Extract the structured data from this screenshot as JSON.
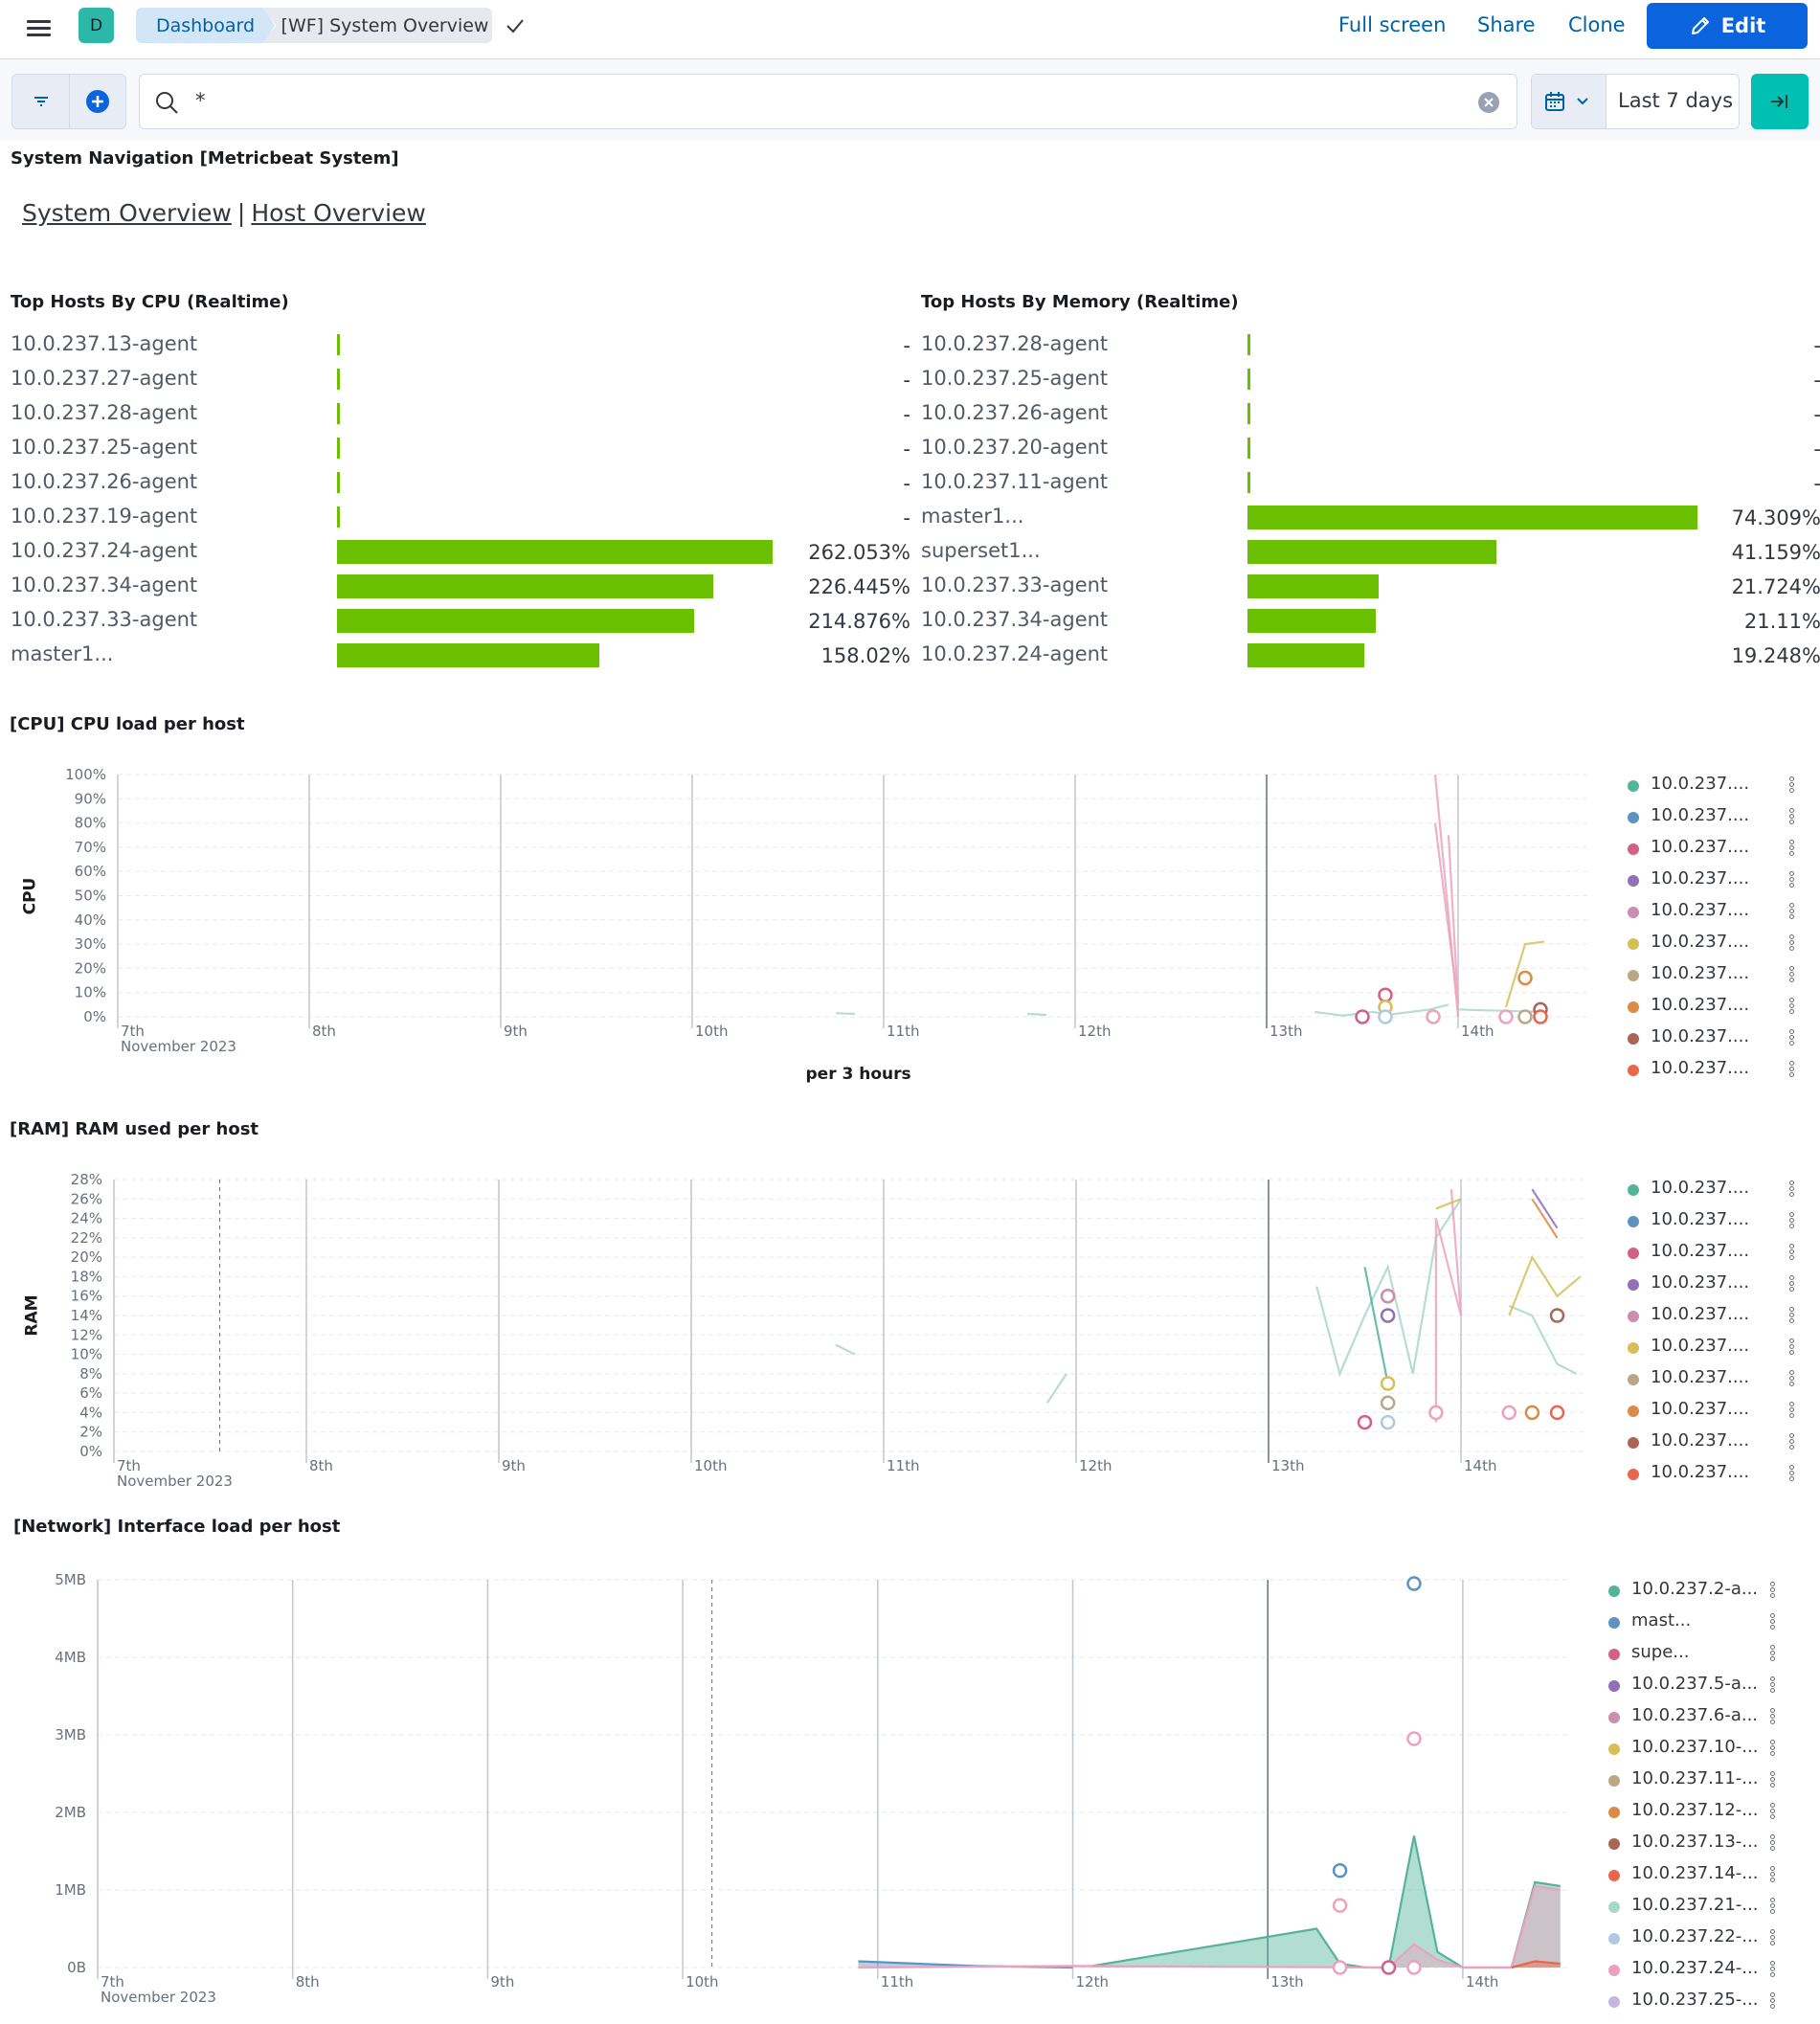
{
  "header": {
    "space_initial": "D",
    "breadcrumbs": [
      "Dashboard",
      "[WF] System Overview"
    ],
    "links": [
      "Full screen",
      "Share",
      "Clone"
    ],
    "edit_label": "Edit"
  },
  "query": {
    "text": "*",
    "date_range": "Last 7 days"
  },
  "nav": {
    "title": "System Navigation [Metricbeat System]",
    "links": [
      "System Overview",
      "Host Overview"
    ],
    "separator": "|"
  },
  "colors": {
    "bar": "#6abf00",
    "palette": [
      "#54b399",
      "#6092c0",
      "#d36086",
      "#9170b8",
      "#ca8eae",
      "#d6bf57",
      "#b9a888",
      "#da8b45",
      "#aa6556",
      "#e7664c",
      "#a8d8c8",
      "#b0c9e0",
      "#eba3bd",
      "#c6b5dc"
    ]
  },
  "cpu_top": {
    "title": "Top Hosts By CPU (Realtime)",
    "rows": [
      {
        "name": "10.0.237.13-agent",
        "value": "-",
        "pct": 0
      },
      {
        "name": "10.0.237.27-agent",
        "value": "-",
        "pct": 0
      },
      {
        "name": "10.0.237.28-agent",
        "value": "-",
        "pct": 0
      },
      {
        "name": "10.0.237.25-agent",
        "value": "-",
        "pct": 0
      },
      {
        "name": "10.0.237.26-agent",
        "value": "-",
        "pct": 0
      },
      {
        "name": "10.0.237.19-agent",
        "value": "-",
        "pct": 0
      },
      {
        "name": "10.0.237.24-agent",
        "value": "262.053%",
        "pct": 262.053
      },
      {
        "name": "10.0.237.34-agent",
        "value": "226.445%",
        "pct": 226.445
      },
      {
        "name": "10.0.237.33-agent",
        "value": "214.876%",
        "pct": 214.876
      },
      {
        "name": "master1...",
        "value": "158.02%",
        "pct": 158.02
      }
    ]
  },
  "mem_top": {
    "title": "Top Hosts By Memory (Realtime)",
    "rows": [
      {
        "name": "10.0.237.28-agent",
        "value": "-",
        "pct": 0
      },
      {
        "name": "10.0.237.25-agent",
        "value": "-",
        "pct": 0
      },
      {
        "name": "10.0.237.26-agent",
        "value": "-",
        "pct": 0
      },
      {
        "name": "10.0.237.20-agent",
        "value": "-",
        "pct": 0
      },
      {
        "name": "10.0.237.11-agent",
        "value": "-",
        "pct": 0
      },
      {
        "name": "master1...",
        "value": "74.309%",
        "pct": 74.309
      },
      {
        "name": "superset1...",
        "value": "41.159%",
        "pct": 41.159
      },
      {
        "name": "10.0.237.33-agent",
        "value": "21.724%",
        "pct": 21.724
      },
      {
        "name": "10.0.237.34-agent",
        "value": "21.11%",
        "pct": 21.11
      },
      {
        "name": "10.0.237.24-agent",
        "value": "19.248%",
        "pct": 19.248
      }
    ]
  },
  "chart_data": [
    {
      "type": "line",
      "title": "[CPU] CPU load per host",
      "ylabel": "CPU",
      "xlabel": "per 3 hours",
      "x_ticks": [
        "7th",
        "8th",
        "9th",
        "10th",
        "11th",
        "12th",
        "13th",
        "14th"
      ],
      "x_sub": "November 2023",
      "y_ticks": [
        "0%",
        "10%",
        "20%",
        "30%",
        "40%",
        "50%",
        "60%",
        "70%",
        "80%",
        "90%",
        "100%"
      ],
      "ylim": [
        0,
        100
      ],
      "legend": [
        "10.0.237....",
        "10.0.237....",
        "10.0.237....",
        "10.0.237....",
        "10.0.237....",
        "10.0.237....",
        "10.0.237....",
        "10.0.237....",
        "10.0.237....",
        "10.0.237...."
      ],
      "series": [
        {
          "color_index": 10,
          "points": [
            [
              3.75,
              1.5
            ],
            [
              3.85,
              1.2
            ]
          ]
        },
        {
          "color_index": 10,
          "points": [
            [
              4.75,
              1.2
            ],
            [
              4.85,
              0.8
            ]
          ]
        },
        {
          "color_index": 10,
          "points": [
            [
              6.25,
              2
            ],
            [
              6.4,
              0.5
            ],
            [
              6.55,
              2
            ],
            [
              6.65,
              1
            ],
            [
              6.85,
              3
            ],
            [
              6.95,
              5
            ]
          ]
        },
        {
          "color_index": 12,
          "points": [
            [
              6.88,
              100
            ],
            [
              7.0,
              0
            ]
          ]
        },
        {
          "color_index": 12,
          "points": [
            [
              6.88,
              80
            ],
            [
              7.0,
              5
            ],
            [
              6.95,
              75
            ]
          ]
        },
        {
          "color_index": 5,
          "points": [
            [
              7.25,
              4
            ],
            [
              7.35,
              30
            ],
            [
              7.45,
              31
            ]
          ]
        },
        {
          "color_index": 10,
          "points": [
            [
              7.0,
              3
            ],
            [
              7.45,
              2
            ]
          ]
        }
      ],
      "markers": [
        {
          "x": 6.5,
          "y": 0,
          "color_index": 2
        },
        {
          "x": 6.62,
          "y": 9,
          "color_index": 2
        },
        {
          "x": 6.62,
          "y": 4,
          "color_index": 5
        },
        {
          "x": 6.62,
          "y": 0,
          "color_index": 11
        },
        {
          "x": 6.87,
          "y": 0,
          "color_index": 12
        },
        {
          "x": 7.25,
          "y": 0,
          "color_index": 12
        },
        {
          "x": 7.35,
          "y": 16,
          "color_index": 7
        },
        {
          "x": 7.35,
          "y": 0,
          "color_index": 6
        },
        {
          "x": 7.43,
          "y": 3,
          "color_index": 8
        },
        {
          "x": 7.43,
          "y": 0,
          "color_index": 9
        }
      ]
    },
    {
      "type": "line",
      "title": "[RAM] RAM used per host",
      "ylabel": "RAM",
      "x_ticks": [
        "7th",
        "8th",
        "9th",
        "10th",
        "11th",
        "12th",
        "13th",
        "14th"
      ],
      "x_sub": "November 2023",
      "y_ticks": [
        "0%",
        "2%",
        "4%",
        "6%",
        "8%",
        "10%",
        "12%",
        "14%",
        "16%",
        "18%",
        "20%",
        "22%",
        "24%",
        "26%",
        "28%"
      ],
      "ylim": [
        0,
        28
      ],
      "legend": [
        "10.0.237....",
        "10.0.237....",
        "10.0.237....",
        "10.0.237....",
        "10.0.237....",
        "10.0.237....",
        "10.0.237....",
        "10.0.237....",
        "10.0.237....",
        "10.0.237...."
      ],
      "series": [
        {
          "color_index": 10,
          "points": [
            [
              3.75,
              11
            ],
            [
              3.85,
              10
            ]
          ]
        },
        {
          "color_index": 10,
          "points": [
            [
              4.85,
              5
            ],
            [
              4.95,
              8
            ]
          ]
        },
        {
          "color_index": 10,
          "points": [
            [
              6.25,
              17
            ],
            [
              6.37,
              8
            ],
            [
              6.5,
              14
            ],
            [
              6.62,
              19
            ],
            [
              6.75,
              8
            ],
            [
              6.87,
              22
            ],
            [
              7.0,
              26
            ]
          ]
        },
        {
          "color_index": 0,
          "points": [
            [
              6.5,
              19
            ],
            [
              6.62,
              7
            ]
          ]
        },
        {
          "color_index": 12,
          "points": [
            [
              6.87,
              3
            ],
            [
              6.87,
              24
            ],
            [
              7.0,
              14
            ],
            [
              6.95,
              27
            ]
          ]
        },
        {
          "color_index": 5,
          "points": [
            [
              6.87,
              25
            ],
            [
              7.0,
              26
            ]
          ]
        },
        {
          "color_index": 10,
          "points": [
            [
              7.25,
              15
            ],
            [
              7.37,
              14
            ],
            [
              7.5,
              9
            ],
            [
              7.6,
              8
            ]
          ]
        },
        {
          "color_index": 5,
          "points": [
            [
              7.25,
              14
            ],
            [
              7.37,
              20
            ],
            [
              7.5,
              16
            ],
            [
              7.62,
              18
            ]
          ]
        },
        {
          "color_index": 3,
          "points": [
            [
              7.37,
              27
            ],
            [
              7.5,
              23
            ]
          ]
        },
        {
          "color_index": 7,
          "points": [
            [
              7.37,
              26
            ],
            [
              7.5,
              22
            ]
          ]
        }
      ],
      "markers": [
        {
          "x": 6.5,
          "y": 3,
          "color_index": 2
        },
        {
          "x": 6.62,
          "y": 16,
          "color_index": 4
        },
        {
          "x": 6.62,
          "y": 14,
          "color_index": 3
        },
        {
          "x": 6.62,
          "y": 7,
          "color_index": 5
        },
        {
          "x": 6.62,
          "y": 5,
          "color_index": 6
        },
        {
          "x": 6.62,
          "y": 3,
          "color_index": 11
        },
        {
          "x": 6.87,
          "y": 4,
          "color_index": 12
        },
        {
          "x": 7.25,
          "y": 4,
          "color_index": 12
        },
        {
          "x": 7.37,
          "y": 4,
          "color_index": 7
        },
        {
          "x": 7.5,
          "y": 14,
          "color_index": 8
        },
        {
          "x": 7.5,
          "y": 4,
          "color_index": 9
        }
      ]
    },
    {
      "type": "area",
      "title": "[Network] Interface load per host",
      "x_ticks": [
        "7th",
        "8th",
        "9th",
        "10th",
        "11th",
        "12th",
        "13th",
        "14th"
      ],
      "x_sub": "November 2023",
      "y_ticks": [
        "0B",
        "1MB",
        "2MB",
        "3MB",
        "4MB",
        "5MB"
      ],
      "ylim": [
        0,
        5
      ],
      "legend": [
        "10.0.237.2-a...",
        "mast...",
        "supe...",
        "10.0.237.5-a...",
        "10.0.237.6-a...",
        "10.0.237.10-...",
        "10.0.237.11-...",
        "10.0.237.12-...",
        "10.0.237.13-...",
        "10.0.237.14-...",
        "10.0.237.21-...",
        "10.0.237.22-...",
        "10.0.237.24-...",
        "10.0.237.25-..."
      ],
      "series": [
        {
          "color_index": 0,
          "points": [
            [
              5.1,
              0.02
            ],
            [
              6.25,
              0.5
            ],
            [
              6.37,
              0.05
            ],
            [
              6.5,
              0
            ],
            [
              6.62,
              0
            ],
            [
              6.75,
              1.7
            ],
            [
              6.87,
              0.2
            ],
            [
              7.0,
              0
            ],
            [
              7.25,
              0
            ],
            [
              7.37,
              1.1
            ],
            [
              7.5,
              1.05
            ]
          ]
        },
        {
          "color_index": 1,
          "points": [
            [
              3.9,
              0.08
            ],
            [
              4.5,
              0.02
            ],
            [
              5.0,
              0
            ]
          ]
        },
        {
          "color_index": 12,
          "points": [
            [
              3.9,
              0
            ],
            [
              5.0,
              0.02
            ],
            [
              6.62,
              0
            ],
            [
              6.75,
              0.3
            ],
            [
              6.87,
              0.1
            ],
            [
              7.0,
              0
            ],
            [
              7.25,
              0
            ],
            [
              7.37,
              1.05
            ],
            [
              7.5,
              1.0
            ]
          ]
        },
        {
          "color_index": 9,
          "points": [
            [
              7.25,
              0
            ],
            [
              7.37,
              0.08
            ],
            [
              7.5,
              0.05
            ]
          ]
        }
      ],
      "markers": [
        {
          "x": 6.75,
          "y": 4.95,
          "color_index": 1
        },
        {
          "x": 6.75,
          "y": 2.95,
          "color_index": 12
        },
        {
          "x": 6.37,
          "y": 1.25,
          "color_index": 1
        },
        {
          "x": 6.37,
          "y": 0.8,
          "color_index": 12
        },
        {
          "x": 6.37,
          "y": 0,
          "color_index": 12
        },
        {
          "x": 6.62,
          "y": 0,
          "color_index": 2
        },
        {
          "x": 6.75,
          "y": 0,
          "color_index": 12
        }
      ]
    }
  ]
}
